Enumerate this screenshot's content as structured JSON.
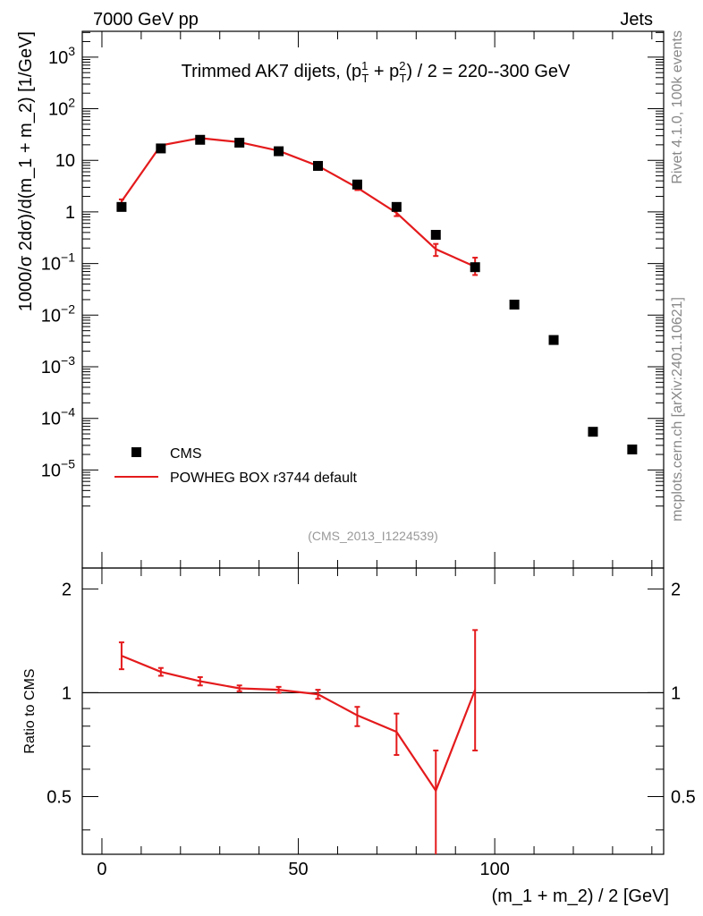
{
  "header": {
    "left": "7000 GeV pp",
    "right": "Jets"
  },
  "side_labels": {
    "rivet": "Rivet 4.1.0,  100k events",
    "mcplots": "mcplots.cern.ch [arXiv:2401.10621]"
  },
  "chart_data": {
    "type": "scatter",
    "title_main": "Trimmed AK7 dijets, (p",
    "title_sup1": "1",
    "title_sub1": "T",
    "title_plus": " + p",
    "title_sup2": "2",
    "title_sub2": "T",
    "title_rest": ") / 2 = 220--300 GeV",
    "analysis_id": "(CMS_2013_I1224539)",
    "ylabel": "1000/σ  2dσ)/d(m_1 + m_2) [1/GeV]",
    "ratio_ylabel": "Ratio to CMS",
    "xlabel": "(m_1 + m_2) / 2 [GeV]",
    "xlim": [
      -5,
      143
    ],
    "ylim_log10": [
      -6.9,
      3.5
    ],
    "ratio_ylim": [
      0.34,
      2.3
    ],
    "x_ticks": [
      "0",
      "50",
      "100"
    ],
    "x_tick_values": [
      0,
      50,
      100
    ],
    "y_tick_values_log10": [
      -5,
      -4,
      -3,
      -2,
      -1,
      0,
      1,
      2,
      3
    ],
    "y_tick_labels": [
      {
        "base": "10",
        "exp": "−5"
      },
      {
        "base": "10",
        "exp": "−4"
      },
      {
        "base": "10",
        "exp": "−3"
      },
      {
        "base": "10",
        "exp": "−2"
      },
      {
        "base": "10",
        "exp": "−1"
      },
      {
        "base": "1",
        "exp": ""
      },
      {
        "base": "10",
        "exp": ""
      },
      {
        "base": "10",
        "exp": "2"
      },
      {
        "base": "10",
        "exp": "3"
      }
    ],
    "ratio_ticks": [
      "0.5",
      "1",
      "2"
    ],
    "ratio_tick_values": [
      0.5,
      1,
      2
    ],
    "legend": [
      {
        "name": "CMS",
        "color": "#000000",
        "style": "marker"
      },
      {
        "name": "POWHEG BOX r3744 default",
        "color": "#e41a1c",
        "style": "line"
      }
    ],
    "series": [
      {
        "name": "CMS",
        "x": [
          5,
          15,
          25,
          35,
          45,
          55,
          65,
          75,
          85,
          95,
          105,
          115,
          125,
          135
        ],
        "values": [
          1.25,
          17,
          25,
          22,
          15,
          7.8,
          3.4,
          1.25,
          0.36,
          0.085,
          0.016,
          0.0033,
          5.5e-05,
          2.5e-05
        ]
      },
      {
        "name": "POWHEG BOX r3744 default",
        "x": [
          5,
          15,
          25,
          35,
          45,
          55,
          65,
          75,
          85,
          95
        ],
        "values": [
          1.6,
          19.5,
          27,
          22.5,
          15.3,
          7.8,
          2.95,
          0.96,
          0.19,
          0.087
        ],
        "err_low": [
          1.45,
          18.9,
          26.3,
          22.0,
          14.8,
          7.5,
          2.65,
          0.83,
          0.14,
          0.06
        ],
        "err_high": [
          1.75,
          20.1,
          27.7,
          23.0,
          15.8,
          8.1,
          3.25,
          1.09,
          0.24,
          0.13
        ]
      }
    ],
    "ratio": {
      "x": [
        5,
        15,
        25,
        35,
        45,
        55,
        65,
        75,
        85,
        95
      ],
      "values": [
        1.28,
        1.15,
        1.08,
        1.03,
        1.02,
        0.99,
        0.86,
        0.77,
        0.52,
        1.02
      ],
      "err_low": [
        1.17,
        1.12,
        1.05,
        1.01,
        1.0,
        0.96,
        0.8,
        0.66,
        0.32,
        0.68
      ],
      "err_high": [
        1.4,
        1.18,
        1.11,
        1.05,
        1.04,
        1.02,
        0.91,
        0.87,
        0.68,
        1.52
      ]
    }
  }
}
